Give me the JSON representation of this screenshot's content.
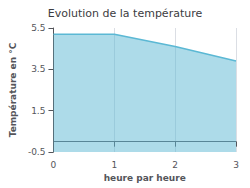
{
  "chart_data": {
    "type": "area",
    "title": "Evolution de la température",
    "xlabel": "heure par heure",
    "ylabel": "Température en °C",
    "x": [
      0,
      1,
      2,
      3
    ],
    "values": [
      5.2,
      5.2,
      4.6,
      3.9
    ],
    "color": "#5bb8d4",
    "xlim": [
      0,
      3
    ],
    "xticks": [
      0,
      1,
      2,
      3
    ],
    "ylim": [
      -0.5,
      5.5
    ],
    "yticks": [
      -0.5,
      1.5,
      3.5,
      5.5
    ],
    "grid": "x"
  }
}
